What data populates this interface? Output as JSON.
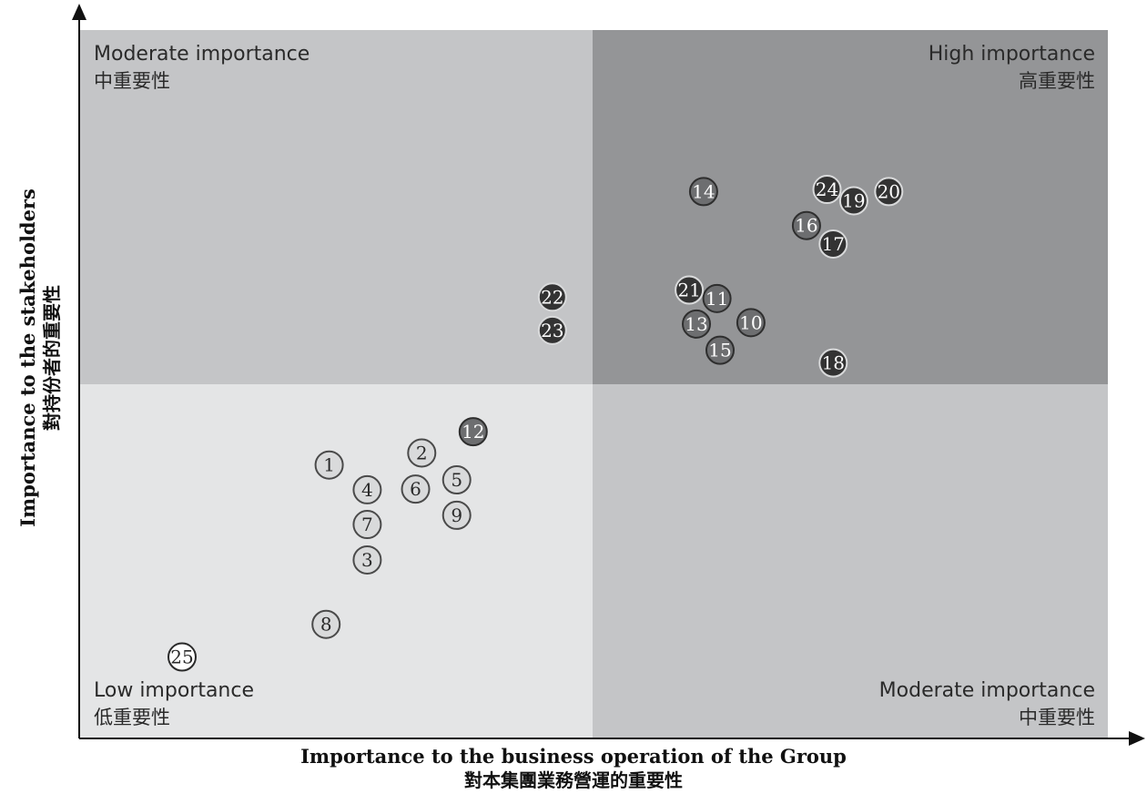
{
  "chart_data": {
    "type": "scatter",
    "xlabel": "Importance to the business operation of the Group",
    "xlabel_zh": "對本集團業務營運的重要性",
    "ylabel": "Importance to the stakeholders",
    "ylabel_zh": "對持份者的重要性",
    "xlim": [
      0,
      100
    ],
    "ylim": [
      0,
      100
    ],
    "quadrants": {
      "top_left": {
        "en": "Moderate importance",
        "zh": "中重要性",
        "color": "#c4c5c7"
      },
      "top_right": {
        "en": "High importance",
        "zh": "高重要性",
        "color": "#949597"
      },
      "bottom_left": {
        "en": "Low importance",
        "zh": "低重要性",
        "color": "#e4e5e6"
      },
      "bottom_right": {
        "en": "Moderate importance",
        "zh": "中重要性",
        "color": "#c4c5c7"
      }
    },
    "point_styles": {
      "low": {
        "fill": "#d9dadb",
        "text": "#2a2a2a",
        "stroke": "#4a4a4a"
      },
      "mid": {
        "fill": "#6d6e70",
        "text": "#ffffff",
        "stroke": "#2e2e2e"
      },
      "high": {
        "fill": "#333333",
        "text": "#ffffff",
        "stroke": "#d9dadb"
      },
      "none": {
        "fill": "#ffffff",
        "text": "#2a2a2a",
        "stroke": "#2a2a2a"
      }
    },
    "points": [
      {
        "id": "1",
        "x": 24.3,
        "y": 38.6,
        "style": "low"
      },
      {
        "id": "2",
        "x": 33.3,
        "y": 40.3,
        "style": "low"
      },
      {
        "id": "3",
        "x": 28.0,
        "y": 25.2,
        "style": "low"
      },
      {
        "id": "4",
        "x": 28.0,
        "y": 35.1,
        "style": "low"
      },
      {
        "id": "5",
        "x": 36.7,
        "y": 36.5,
        "style": "low"
      },
      {
        "id": "6",
        "x": 32.7,
        "y": 35.2,
        "style": "low"
      },
      {
        "id": "7",
        "x": 28.0,
        "y": 30.2,
        "style": "low"
      },
      {
        "id": "8",
        "x": 24.0,
        "y": 16.1,
        "style": "low"
      },
      {
        "id": "9",
        "x": 36.7,
        "y": 31.5,
        "style": "low"
      },
      {
        "id": "10",
        "x": 65.3,
        "y": 58.7,
        "style": "mid"
      },
      {
        "id": "11",
        "x": 62.0,
        "y": 62.1,
        "style": "mid"
      },
      {
        "id": "12",
        "x": 38.3,
        "y": 43.3,
        "style": "mid"
      },
      {
        "id": "13",
        "x": 60.0,
        "y": 58.5,
        "style": "mid"
      },
      {
        "id": "14",
        "x": 60.7,
        "y": 77.2,
        "style": "mid"
      },
      {
        "id": "15",
        "x": 62.3,
        "y": 54.8,
        "style": "mid"
      },
      {
        "id": "16",
        "x": 70.7,
        "y": 72.4,
        "style": "mid"
      },
      {
        "id": "17",
        "x": 73.3,
        "y": 69.8,
        "style": "high"
      },
      {
        "id": "18",
        "x": 73.3,
        "y": 53.0,
        "style": "high"
      },
      {
        "id": "19",
        "x": 75.3,
        "y": 75.9,
        "style": "high"
      },
      {
        "id": "20",
        "x": 78.7,
        "y": 77.2,
        "style": "high"
      },
      {
        "id": "21",
        "x": 59.3,
        "y": 63.3,
        "style": "high"
      },
      {
        "id": "22",
        "x": 46.0,
        "y": 62.3,
        "style": "high"
      },
      {
        "id": "23",
        "x": 46.0,
        "y": 57.6,
        "style": "high"
      },
      {
        "id": "24",
        "x": 72.7,
        "y": 77.5,
        "style": "high"
      },
      {
        "id": "25",
        "x": 10.0,
        "y": 11.5,
        "style": "none"
      }
    ]
  }
}
